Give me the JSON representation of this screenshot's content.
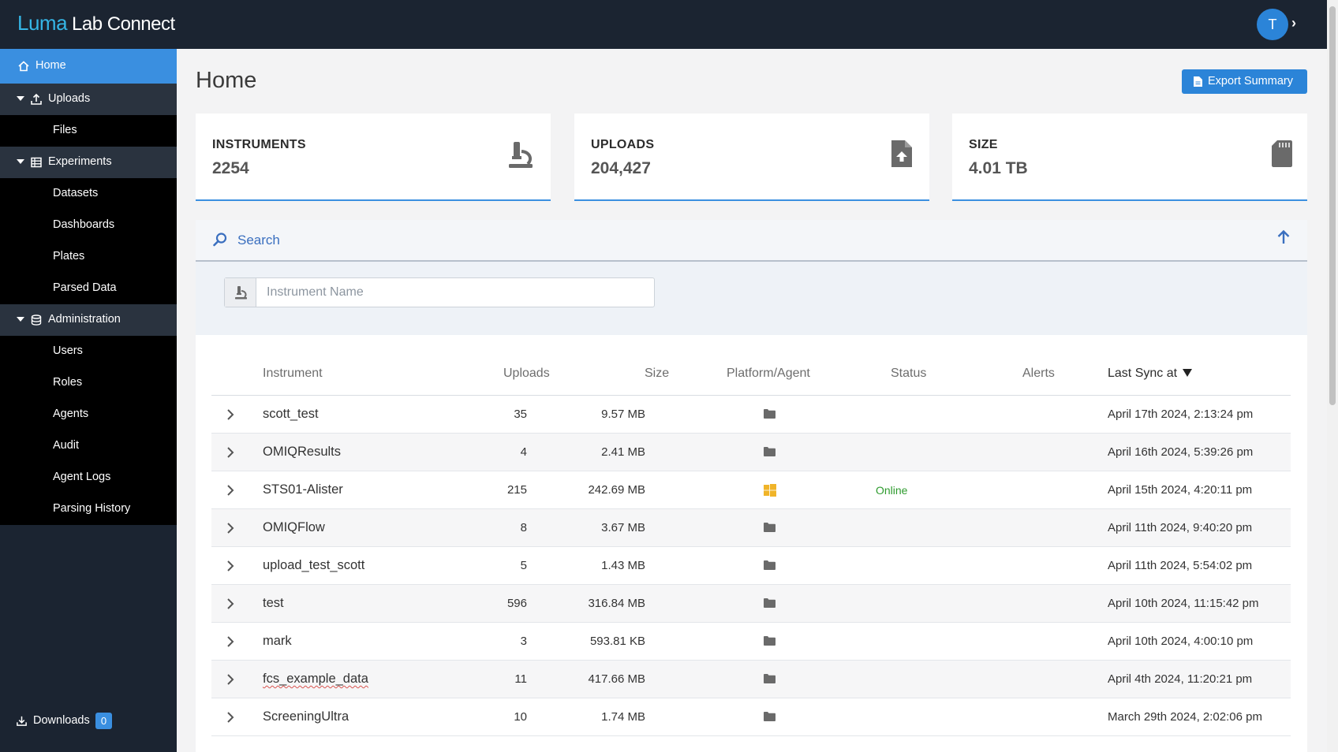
{
  "app": {
    "logo_primary": "Luma",
    "logo_secondary": "Lab Connect",
    "user_initial": "T"
  },
  "sidebar": {
    "home": "Home",
    "uploads": "Uploads",
    "files": "Files",
    "experiments": "Experiments",
    "datasets": "Datasets",
    "dashboards": "Dashboards",
    "plates": "Plates",
    "parsed_data": "Parsed Data",
    "administration": "Administration",
    "users": "Users",
    "roles": "Roles",
    "agents": "Agents",
    "audit": "Audit",
    "agent_logs": "Agent Logs",
    "parsing_history": "Parsing History",
    "downloads": "Downloads",
    "downloads_count": "0"
  },
  "page": {
    "title": "Home",
    "export_label": "Export Summary"
  },
  "stats": {
    "instruments_title": "INSTRUMENTS",
    "instruments_value": "2254",
    "uploads_title": "UPLOADS",
    "uploads_value": "204,427",
    "size_title": "SIZE",
    "size_value": "4.01 TB"
  },
  "search": {
    "label": "Search",
    "placeholder": "Instrument Name"
  },
  "table": {
    "columns": {
      "instrument": "Instrument",
      "uploads": "Uploads",
      "size": "Size",
      "platform": "Platform/Agent",
      "status": "Status",
      "alerts": "Alerts",
      "last_sync": "Last Sync at"
    },
    "rows": [
      {
        "name": "scott_test",
        "uploads": "35",
        "size": "9.57 MB",
        "platform": "folder",
        "status": "",
        "last_sync": "April 17th 2024, 2:13:24 pm"
      },
      {
        "name": "OMIQResults",
        "uploads": "4",
        "size": "2.41 MB",
        "platform": "folder",
        "status": "",
        "last_sync": "April 16th 2024, 5:39:26 pm"
      },
      {
        "name": "STS01-Alister",
        "uploads": "215",
        "size": "242.69 MB",
        "platform": "windows",
        "status": "Online",
        "last_sync": "April 15th 2024, 4:20:11 pm"
      },
      {
        "name": "OMIQFlow",
        "uploads": "8",
        "size": "3.67 MB",
        "platform": "folder",
        "status": "",
        "last_sync": "April 11th 2024, 9:40:20 pm"
      },
      {
        "name": "upload_test_scott",
        "uploads": "5",
        "size": "1.43 MB",
        "platform": "folder",
        "status": "",
        "last_sync": "April 11th 2024, 5:54:02 pm"
      },
      {
        "name": "test",
        "uploads": "596",
        "size": "316.84 MB",
        "platform": "folder",
        "status": "",
        "last_sync": "April 10th 2024, 11:15:42 pm"
      },
      {
        "name": "mark",
        "uploads": "3",
        "size": "593.81 KB",
        "platform": "folder",
        "status": "",
        "last_sync": "April 10th 2024, 4:00:10 pm"
      },
      {
        "name": "fcs_example_data",
        "uploads": "11",
        "size": "417.66 MB",
        "platform": "folder",
        "status": "",
        "last_sync": "April 4th 2024, 11:20:21 pm"
      },
      {
        "name": "ScreeningUltra",
        "uploads": "10",
        "size": "1.74 MB",
        "platform": "folder",
        "status": "",
        "last_sync": "March 29th 2024, 2:02:06 pm"
      }
    ]
  }
}
